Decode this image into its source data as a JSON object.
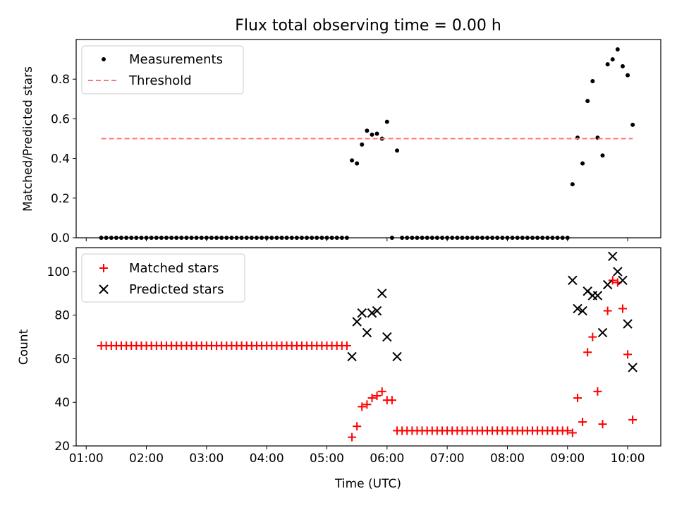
{
  "chart_data": [
    {
      "type": "scatter",
      "title": "Flux total observing time = 0.00 h",
      "xlabel": "",
      "ylabel": "Matched/Predicted stars",
      "xlim": [
        0.833,
        10.55
      ],
      "ylim": [
        0.0,
        1.0
      ],
      "yticks": [
        0.0,
        0.2,
        0.4,
        0.6,
        0.8
      ],
      "yticklabels": [
        "0.0",
        "0.2",
        "0.4",
        "0.6",
        "0.8"
      ],
      "legend": {
        "position": "top-left",
        "entries": [
          "Measurements",
          "Threshold"
        ]
      },
      "series": [
        {
          "name": "Measurements",
          "marker": "dot",
          "color": "#000000",
          "x": [
            1.25,
            1.333,
            1.417,
            1.5,
            1.583,
            1.667,
            1.75,
            1.833,
            1.917,
            2.0,
            2.083,
            2.167,
            2.25,
            2.333,
            2.417,
            2.5,
            2.583,
            2.667,
            2.75,
            2.833,
            2.917,
            3.0,
            3.083,
            3.167,
            3.25,
            3.333,
            3.417,
            3.5,
            3.583,
            3.667,
            3.75,
            3.833,
            3.917,
            4.0,
            4.083,
            4.167,
            4.25,
            4.333,
            4.417,
            4.5,
            4.583,
            4.667,
            4.75,
            4.833,
            4.917,
            5.0,
            5.083,
            5.167,
            5.25,
            5.333,
            5.417,
            5.5,
            5.583,
            5.667,
            5.75,
            5.833,
            5.917,
            6.0,
            6.083,
            6.167,
            6.25,
            6.333,
            6.417,
            6.5,
            6.583,
            6.667,
            6.75,
            6.833,
            6.917,
            7.0,
            7.083,
            7.167,
            7.25,
            7.333,
            7.417,
            7.5,
            7.583,
            7.667,
            7.75,
            7.833,
            7.917,
            8.0,
            8.083,
            8.167,
            8.25,
            8.333,
            8.417,
            8.5,
            8.583,
            8.667,
            8.75,
            8.833,
            8.917,
            9.0,
            9.083,
            9.167,
            9.25,
            9.333,
            9.417,
            9.5,
            9.583,
            9.667,
            9.75,
            9.833,
            9.917,
            10.0,
            10.083
          ],
          "y": [
            0,
            0,
            0,
            0,
            0,
            0,
            0,
            0,
            0,
            0,
            0,
            0,
            0,
            0,
            0,
            0,
            0,
            0,
            0,
            0,
            0,
            0,
            0,
            0,
            0,
            0,
            0,
            0,
            0,
            0,
            0,
            0,
            0,
            0,
            0,
            0,
            0,
            0,
            0,
            0,
            0,
            0,
            0,
            0,
            0,
            0,
            0,
            0,
            0,
            0,
            0.39,
            0.375,
            0.47,
            0.54,
            0.52,
            0.525,
            0.5,
            0.585,
            0,
            0.44,
            0,
            0,
            0,
            0,
            0,
            0,
            0,
            0,
            0,
            0,
            0,
            0,
            0,
            0,
            0,
            0,
            0,
            0,
            0,
            0,
            0,
            0,
            0,
            0,
            0,
            0,
            0,
            0,
            0,
            0,
            0,
            0,
            0,
            0,
            0.27,
            0.505,
            0.375,
            0.69,
            0.79,
            0.505,
            0.415,
            0.875,
            0.9,
            0.95,
            0.865,
            0.82,
            0.57
          ]
        },
        {
          "name": "Threshold",
          "marker": "dashed-line",
          "color": "#ff7777",
          "x": [
            1.25,
            10.083
          ],
          "y": [
            0.5,
            0.5
          ]
        }
      ]
    },
    {
      "type": "scatter",
      "title": "",
      "xlabel": "Time (UTC)",
      "ylabel": "Count",
      "xlim": [
        0.833,
        10.55
      ],
      "ylim": [
        20,
        111
      ],
      "xticks": [
        1,
        2,
        3,
        4,
        5,
        6,
        7,
        8,
        9,
        10
      ],
      "xticklabels": [
        "01:00",
        "02:00",
        "03:00",
        "04:00",
        "05:00",
        "06:00",
        "07:00",
        "08:00",
        "09:00",
        "10:00"
      ],
      "yticks": [
        20,
        40,
        60,
        80,
        100
      ],
      "yticklabels": [
        "20",
        "40",
        "60",
        "80",
        "100"
      ],
      "legend": {
        "position": "top-left",
        "entries": [
          "Matched stars",
          "Predicted stars"
        ]
      },
      "series": [
        {
          "name": "Matched stars",
          "marker": "plus",
          "color": "#ff0000",
          "x": [
            1.25,
            1.333,
            1.417,
            1.5,
            1.583,
            1.667,
            1.75,
            1.833,
            1.917,
            2.0,
            2.083,
            2.167,
            2.25,
            2.333,
            2.417,
            2.5,
            2.583,
            2.667,
            2.75,
            2.833,
            2.917,
            3.0,
            3.083,
            3.167,
            3.25,
            3.333,
            3.417,
            3.5,
            3.583,
            3.667,
            3.75,
            3.833,
            3.917,
            4.0,
            4.083,
            4.167,
            4.25,
            4.333,
            4.417,
            4.5,
            4.583,
            4.667,
            4.75,
            4.833,
            4.917,
            5.0,
            5.083,
            5.167,
            5.25,
            5.333,
            5.417,
            5.5,
            5.583,
            5.667,
            5.75,
            5.833,
            5.917,
            6.0,
            6.083,
            6.167,
            6.25,
            6.333,
            6.417,
            6.5,
            6.583,
            6.667,
            6.75,
            6.833,
            6.917,
            7.0,
            7.083,
            7.167,
            7.25,
            7.333,
            7.417,
            7.5,
            7.583,
            7.667,
            7.75,
            7.833,
            7.917,
            8.0,
            8.083,
            8.167,
            8.25,
            8.333,
            8.417,
            8.5,
            8.583,
            8.667,
            8.75,
            8.833,
            8.917,
            9.0,
            9.083,
            9.167,
            9.25,
            9.333,
            9.417,
            9.5,
            9.583,
            9.667,
            9.75,
            9.833,
            9.917,
            10.0,
            10.083
          ],
          "y": [
            66,
            66,
            66,
            66,
            66,
            66,
            66,
            66,
            66,
            66,
            66,
            66,
            66,
            66,
            66,
            66,
            66,
            66,
            66,
            66,
            66,
            66,
            66,
            66,
            66,
            66,
            66,
            66,
            66,
            66,
            66,
            66,
            66,
            66,
            66,
            66,
            66,
            66,
            66,
            66,
            66,
            66,
            66,
            66,
            66,
            66,
            66,
            66,
            66,
            66,
            24,
            29,
            38,
            39,
            42,
            43,
            45,
            41,
            41,
            27,
            27,
            27,
            27,
            27,
            27,
            27,
            27,
            27,
            27,
            27,
            27,
            27,
            27,
            27,
            27,
            27,
            27,
            27,
            27,
            27,
            27,
            27,
            27,
            27,
            27,
            27,
            27,
            27,
            27,
            27,
            27,
            27,
            27,
            27,
            26,
            42,
            31,
            63,
            70,
            45,
            30,
            82,
            96,
            95,
            83,
            62,
            32
          ]
        },
        {
          "name": "Predicted stars",
          "marker": "x",
          "color": "#000000",
          "x": [
            5.417,
            5.5,
            5.583,
            5.667,
            5.75,
            5.833,
            5.917,
            6.0,
            6.167,
            9.083,
            9.167,
            9.25,
            9.333,
            9.417,
            9.5,
            9.583,
            9.667,
            9.75,
            9.833,
            9.917,
            10.0,
            10.083
          ],
          "y": [
            61,
            77,
            81,
            72,
            81,
            82,
            90,
            70,
            61,
            96,
            83,
            82,
            91,
            89,
            89,
            72,
            94,
            107,
            100,
            96,
            76,
            56
          ]
        }
      ]
    }
  ]
}
